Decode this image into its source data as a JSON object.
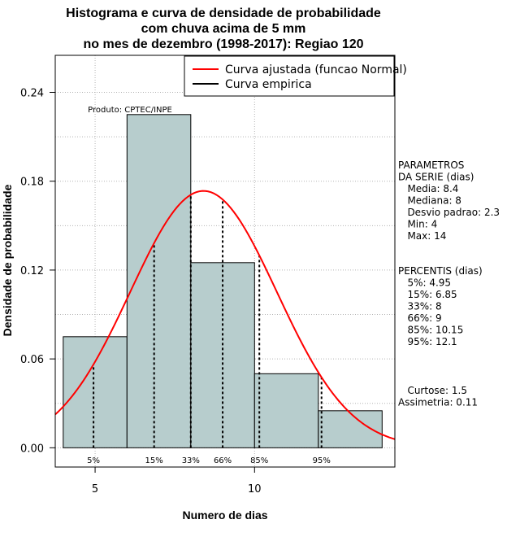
{
  "chart_data": {
    "type": "bar",
    "title_lines": [
      "Histograma e curva de densidade de probabilidade",
      "com chuva acima de 5 mm",
      "no mes de dezembro (1998-2017): Regiao 120"
    ],
    "xlabel": "Numero de dias",
    "ylabel": "Densidade de probabilidade",
    "xlim": [
      3.75,
      14.4
    ],
    "ylim": [
      -0.013,
      0.265
    ],
    "x_ticks": [
      5,
      10
    ],
    "y_ticks": [
      0.0,
      0.06,
      0.12,
      0.18,
      0.24
    ],
    "y_tick_labels": [
      "0.00",
      "0.06",
      "0.12",
      "0.18",
      "0.24"
    ],
    "bins": [
      {
        "x0": 4,
        "x1": 6,
        "value": 0.075
      },
      {
        "x0": 6,
        "x1": 8,
        "value": 0.225
      },
      {
        "x0": 8,
        "x1": 10,
        "value": 0.125
      },
      {
        "x0": 10,
        "x1": 12,
        "value": 0.05
      },
      {
        "x0": 12,
        "x1": 14,
        "value": 0.025
      }
    ],
    "normal_fit": {
      "mean": 8.4,
      "sd": 2.3,
      "x_range": [
        3.75,
        14.4
      ]
    },
    "percentile_lines": [
      {
        "label": "5%",
        "x": 4.95
      },
      {
        "label": "15%",
        "x": 6.85
      },
      {
        "label": "33%",
        "x": 8
      },
      {
        "label": "66%",
        "x": 9
      },
      {
        "label": "85%",
        "x": 10.15
      },
      {
        "label": "95%",
        "x": 12.1
      }
    ],
    "legend": [
      {
        "label": "Curva ajustada (funcao Normal)",
        "color": "#ff0000"
      },
      {
        "label": "Curva empirica",
        "color": "#000000"
      }
    ],
    "legend_position": "top-right",
    "product_label": "Produto: CPTEC/INPE",
    "grid": true,
    "bar_color": "#b7cdcd"
  },
  "side_panel": {
    "parametros": [
      "PARAMETROS",
      "DA SERIE (dias)",
      "   Media: 8.4",
      "   Mediana: 8",
      "   Desvio padrao: 2.3",
      "   Min: 4",
      "   Max: 14"
    ],
    "percentis": [
      "PERCENTIS (dias)",
      "   5%: 4.95",
      "   15%: 6.85",
      "   33%: 8",
      "   66%: 9",
      "   85%: 10.15",
      "   95%: 12.1"
    ],
    "shape": [
      "   Curtose: 1.5",
      "Assimetria: 0.11"
    ]
  }
}
